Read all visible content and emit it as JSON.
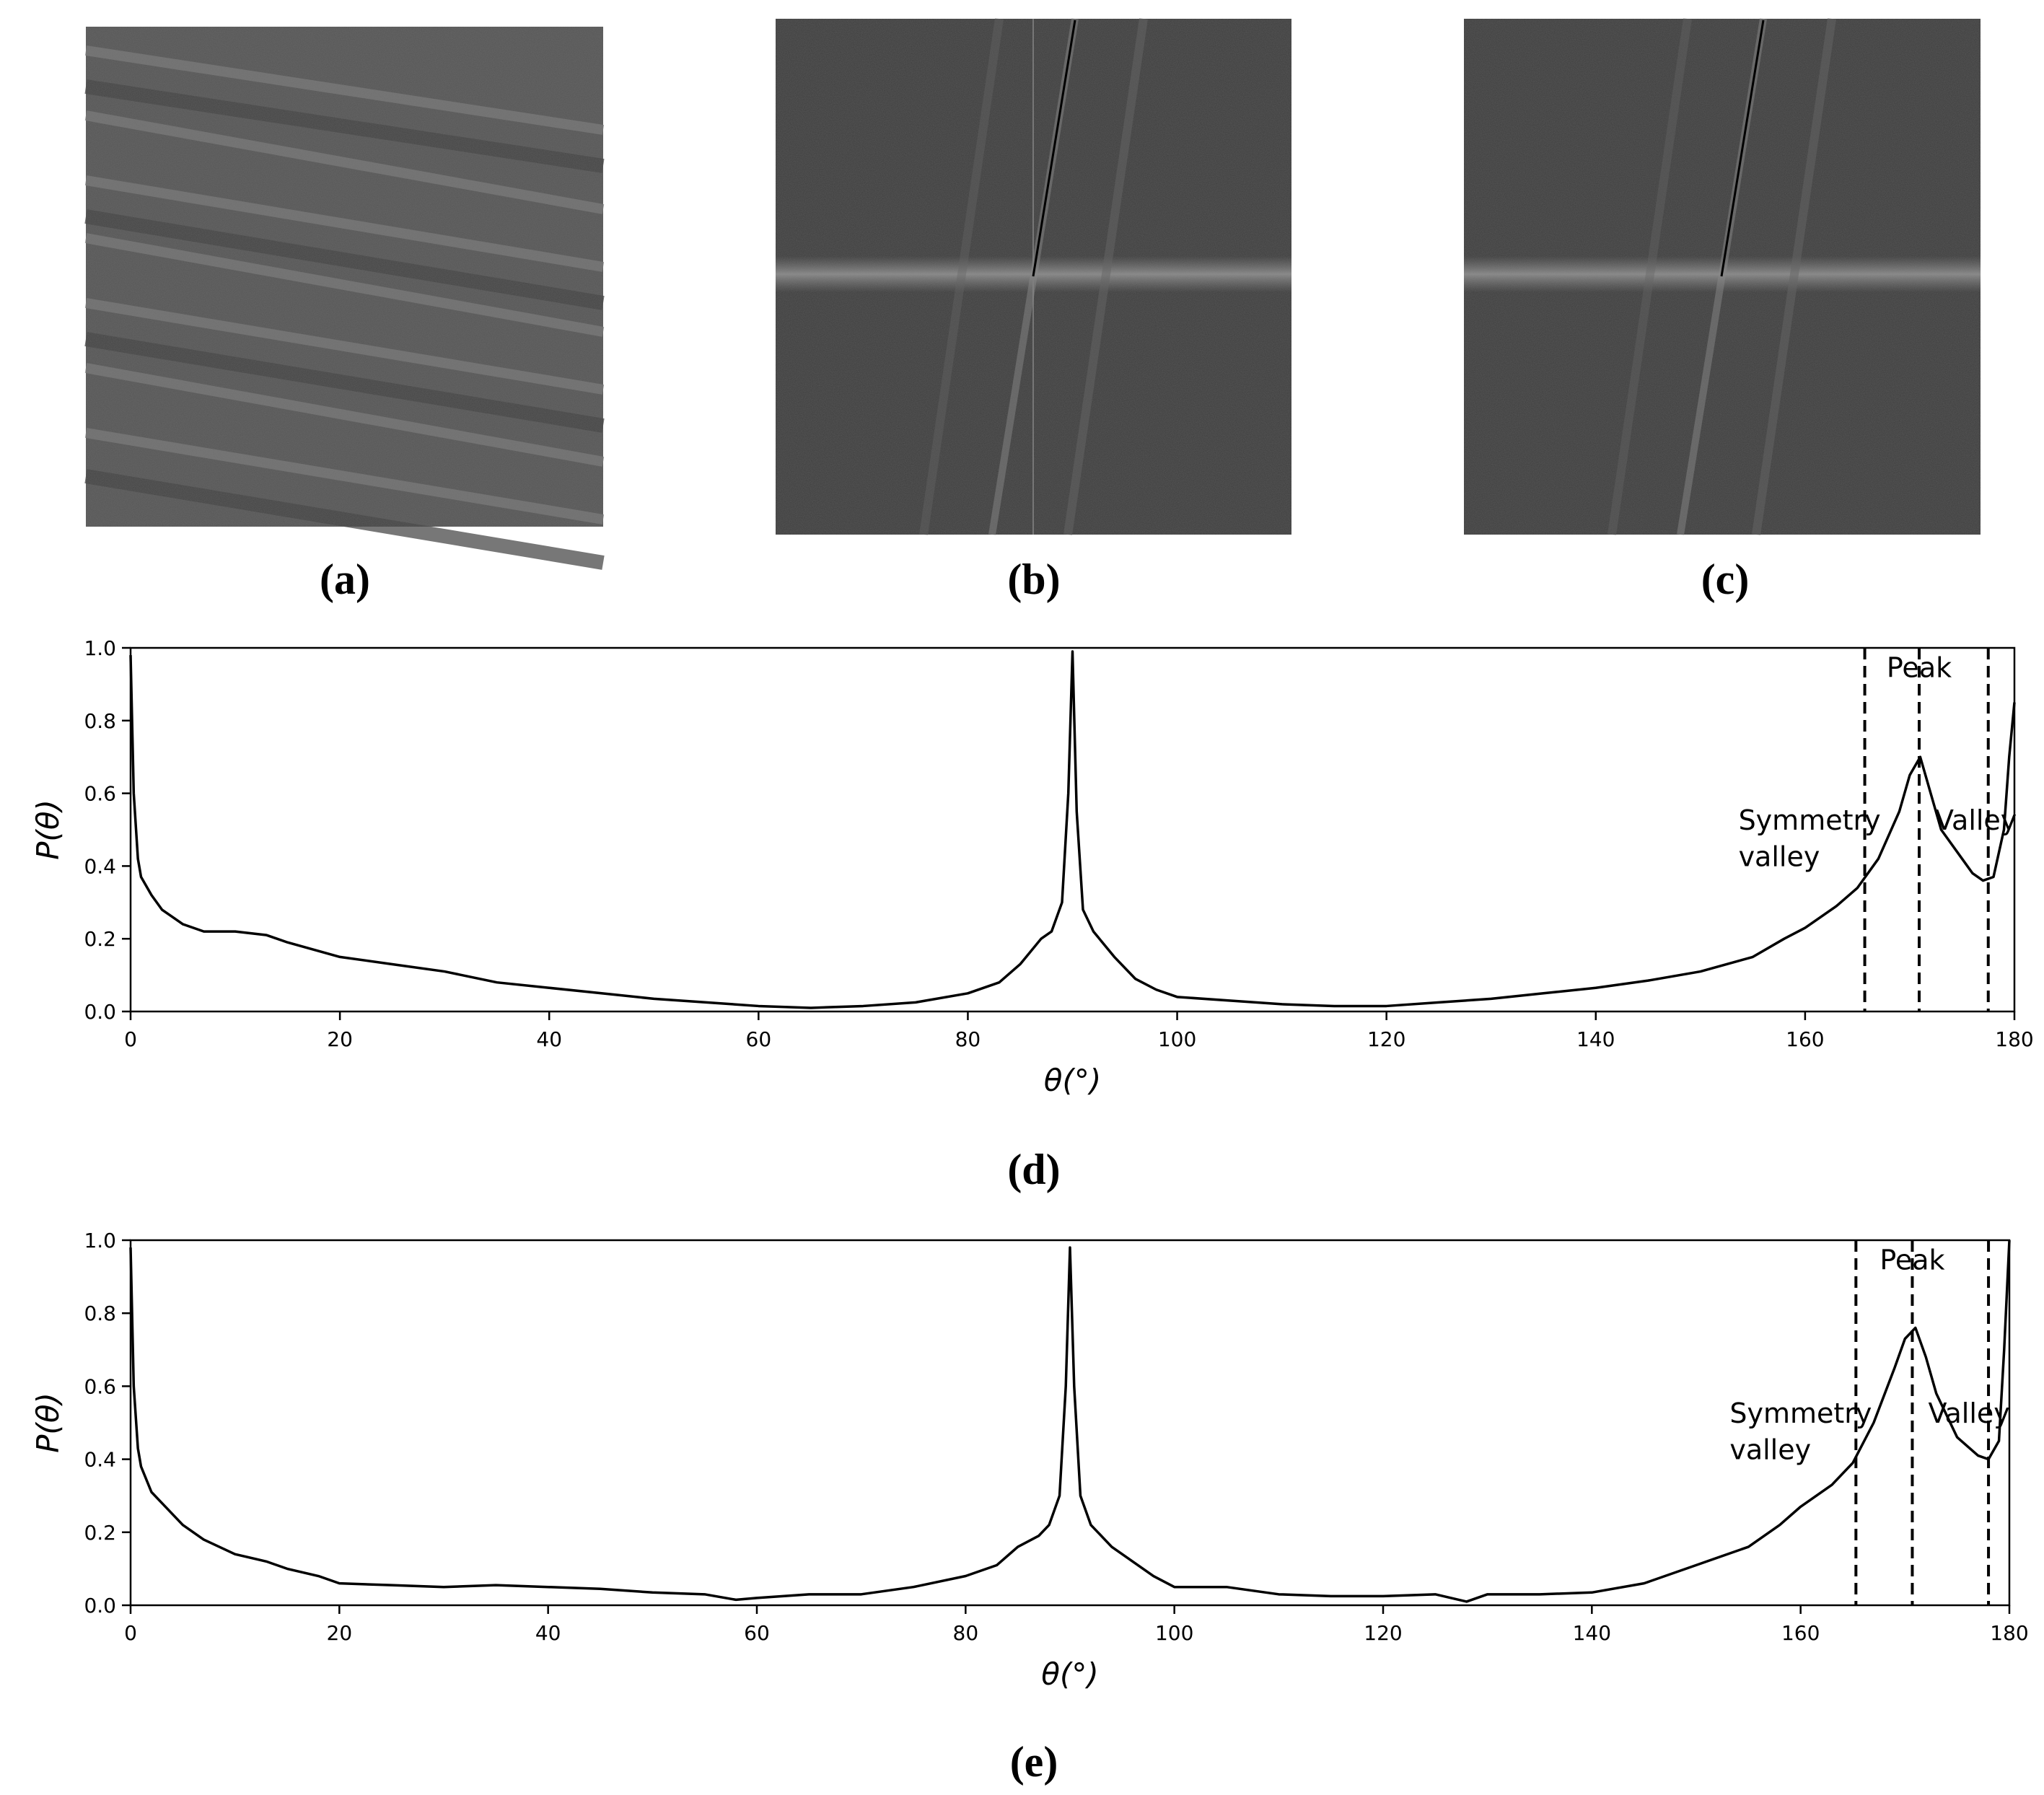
{
  "image_captions": [
    "(a)",
    "(b)",
    "(c)"
  ],
  "chart_data": [
    {
      "type": "line",
      "caption": "(d)",
      "xlabel": "θ(°)",
      "ylabel": "P(θ)",
      "x": [
        0,
        0.3,
        0.7,
        1,
        2,
        3,
        5,
        7,
        10,
        13,
        15,
        20,
        25,
        30,
        35,
        40,
        45,
        50,
        55,
        60,
        65,
        70,
        75,
        80,
        83,
        85,
        87,
        88,
        89,
        89.6,
        90,
        90.4,
        91,
        92,
        94,
        96,
        98,
        100,
        105,
        110,
        115,
        120,
        125,
        130,
        135,
        140,
        145,
        150,
        155,
        158,
        160,
        163,
        165,
        167,
        169,
        170,
        171,
        172,
        173,
        175,
        176,
        177,
        178,
        179,
        179.5,
        180
      ],
      "series": [
        {
          "color": "#000000",
          "values": [
            0.98,
            0.6,
            0.42,
            0.37,
            0.32,
            0.28,
            0.24,
            0.22,
            0.22,
            0.21,
            0.19,
            0.15,
            0.13,
            0.11,
            0.08,
            0.065,
            0.05,
            0.035,
            0.025,
            0.015,
            0.01,
            0.015,
            0.025,
            0.05,
            0.08,
            0.13,
            0.2,
            0.22,
            0.3,
            0.6,
            0.99,
            0.55,
            0.28,
            0.22,
            0.15,
            0.09,
            0.06,
            0.04,
            0.03,
            0.02,
            0.015,
            0.015,
            0.025,
            0.035,
            0.05,
            0.065,
            0.085,
            0.11,
            0.15,
            0.2,
            0.23,
            0.29,
            0.34,
            0.42,
            0.55,
            0.65,
            0.7,
            0.6,
            0.5,
            0.42,
            0.38,
            0.36,
            0.37,
            0.5,
            0.7,
            0.85
          ]
        }
      ],
      "xlim": [
        0,
        180
      ],
      "xticks": [
        0,
        20,
        40,
        60,
        80,
        100,
        120,
        140,
        160,
        180
      ],
      "ylim": [
        0,
        1
      ],
      "yticks": [
        {
          "value": 0,
          "label": "0.0"
        },
        0.2,
        0.4,
        0.6,
        0.8,
        {
          "value": 1,
          "label": "1.0"
        }
      ],
      "vlines": [
        165.7,
        170.9,
        177.5
      ],
      "annotations": [
        "Peak",
        "Symmetry",
        "valley",
        "Valley"
      ]
    },
    {
      "type": "line",
      "caption": "(e)",
      "xlabel": "θ(°)",
      "ylabel": "P(θ)",
      "x": [
        0,
        0.3,
        0.7,
        1,
        2,
        3,
        5,
        7,
        10,
        13,
        15,
        18,
        20,
        25,
        30,
        35,
        40,
        45,
        50,
        55,
        58,
        60,
        65,
        70,
        75,
        80,
        83,
        85,
        87,
        88,
        89,
        89.6,
        90,
        90.4,
        91,
        92,
        94,
        96,
        98,
        100,
        105,
        110,
        115,
        120,
        125,
        128,
        130,
        135,
        140,
        145,
        150,
        155,
        158,
        160,
        163,
        165,
        167,
        169,
        170,
        171,
        172,
        173,
        175,
        177,
        178,
        179,
        179.5,
        180
      ],
      "series": [
        {
          "color": "#000000",
          "values": [
            0.98,
            0.6,
            0.43,
            0.38,
            0.31,
            0.28,
            0.22,
            0.18,
            0.14,
            0.12,
            0.1,
            0.08,
            0.06,
            0.055,
            0.05,
            0.055,
            0.05,
            0.045,
            0.035,
            0.03,
            0.015,
            0.02,
            0.03,
            0.03,
            0.05,
            0.08,
            0.11,
            0.16,
            0.19,
            0.22,
            0.3,
            0.6,
            0.98,
            0.6,
            0.3,
            0.22,
            0.16,
            0.12,
            0.08,
            0.05,
            0.05,
            0.03,
            0.025,
            0.025,
            0.03,
            0.01,
            0.03,
            0.03,
            0.035,
            0.06,
            0.11,
            0.16,
            0.22,
            0.27,
            0.33,
            0.39,
            0.5,
            0.65,
            0.73,
            0.76,
            0.68,
            0.58,
            0.46,
            0.41,
            0.4,
            0.45,
            0.7,
            1.0
          ]
        }
      ],
      "xlim": [
        0,
        180
      ],
      "xticks": [
        0,
        20,
        40,
        60,
        80,
        100,
        120,
        140,
        160,
        180
      ],
      "ylim": [
        0,
        1
      ],
      "yticks": [
        {
          "value": 0,
          "label": "0.0"
        },
        0.2,
        0.4,
        0.6,
        0.8,
        {
          "value": 1,
          "label": "1.0"
        }
      ],
      "vlines": [
        165.3,
        170.7,
        178.0
      ],
      "annotations": [
        "Peak",
        "Symmetry",
        "valley",
        "Valley"
      ]
    }
  ]
}
